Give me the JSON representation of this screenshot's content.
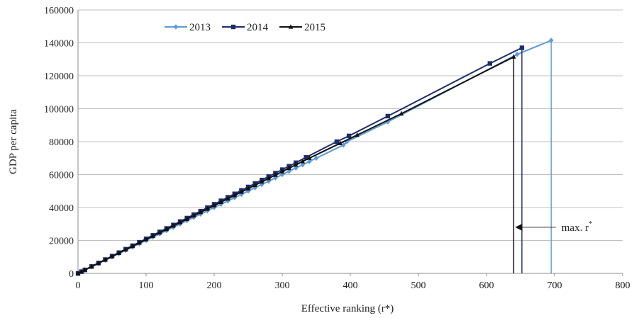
{
  "chart_data": {
    "type": "line",
    "title": "",
    "xlabel": "Effective ranking (r*)",
    "ylabel": "GDP per capita",
    "xlim": [
      0,
      800
    ],
    "ylim": [
      0,
      160000
    ],
    "x_ticks": [
      0,
      100,
      200,
      300,
      400,
      500,
      600,
      700,
      800
    ],
    "y_ticks": [
      0,
      20000,
      40000,
      60000,
      80000,
      100000,
      120000,
      140000,
      160000
    ],
    "grid": "horizontal",
    "legend_position": "top-left",
    "series": [
      {
        "name": "2013",
        "color": "#5b9bd5",
        "marker": "diamond",
        "x": [
          0,
          5,
          10,
          20,
          30,
          40,
          50,
          60,
          70,
          80,
          90,
          100,
          110,
          120,
          130,
          140,
          150,
          160,
          170,
          180,
          190,
          200,
          210,
          220,
          230,
          240,
          250,
          260,
          270,
          280,
          290,
          300,
          310,
          320,
          330,
          340,
          350,
          390,
          395,
          455,
          645,
          695
        ],
        "y": [
          0,
          1000,
          2000,
          4000,
          6000,
          8000,
          10000,
          12000,
          14000,
          16000,
          18000,
          20000,
          22000,
          24000,
          26000,
          28000,
          30000,
          32000,
          34000,
          36000,
          38000,
          40000,
          42000,
          44000,
          46000,
          48000,
          50000,
          52000,
          54000,
          56000,
          58000,
          60000,
          62000,
          64000,
          66000,
          68000,
          70000,
          78000,
          80000,
          92000,
          133000,
          141500
        ],
        "drop_at": 695
      },
      {
        "name": "2014",
        "color": "#1f2d6b",
        "marker": "square",
        "x": [
          0,
          5,
          10,
          20,
          30,
          40,
          50,
          60,
          70,
          80,
          90,
          100,
          110,
          120,
          130,
          140,
          150,
          160,
          170,
          180,
          190,
          200,
          210,
          220,
          230,
          240,
          250,
          260,
          270,
          280,
          290,
          300,
          310,
          320,
          335,
          380,
          398,
          455,
          605,
          652
        ],
        "y": [
          0,
          1050,
          2100,
          4200,
          6300,
          8400,
          10500,
          12600,
          14700,
          16800,
          18900,
          21000,
          23100,
          25200,
          27300,
          29400,
          31500,
          33600,
          35700,
          37800,
          39900,
          42000,
          44100,
          46200,
          48300,
          50400,
          52500,
          54600,
          56700,
          58800,
          60900,
          63000,
          65100,
          67200,
          70500,
          80000,
          83500,
          95500,
          127500,
          137000
        ],
        "drop_at": 652
      },
      {
        "name": "2015",
        "color": "#111111",
        "marker": "triangle",
        "x": [
          0,
          5,
          10,
          20,
          30,
          40,
          50,
          60,
          70,
          80,
          90,
          100,
          110,
          120,
          130,
          140,
          150,
          160,
          170,
          180,
          190,
          200,
          210,
          220,
          230,
          240,
          250,
          260,
          270,
          280,
          290,
          300,
          310,
          320,
          330,
          340,
          385,
          410,
          475,
          640
        ],
        "y": [
          0,
          1030,
          2060,
          4120,
          6180,
          8240,
          10300,
          12360,
          14420,
          16480,
          18540,
          20600,
          22660,
          24720,
          26780,
          28840,
          30900,
          32960,
          35020,
          37080,
          39140,
          41200,
          43260,
          45320,
          47380,
          49440,
          51500,
          53560,
          55620,
          57680,
          59740,
          61800,
          63860,
          65920,
          67980,
          70040,
          79000,
          84000,
          97000,
          131500
        ],
        "drop_at": 640
      }
    ],
    "annotations": [
      {
        "text": "max. r",
        "superscript": "*",
        "arrow_to_x": 640,
        "at_y": 28000,
        "label_x": 706
      }
    ]
  }
}
